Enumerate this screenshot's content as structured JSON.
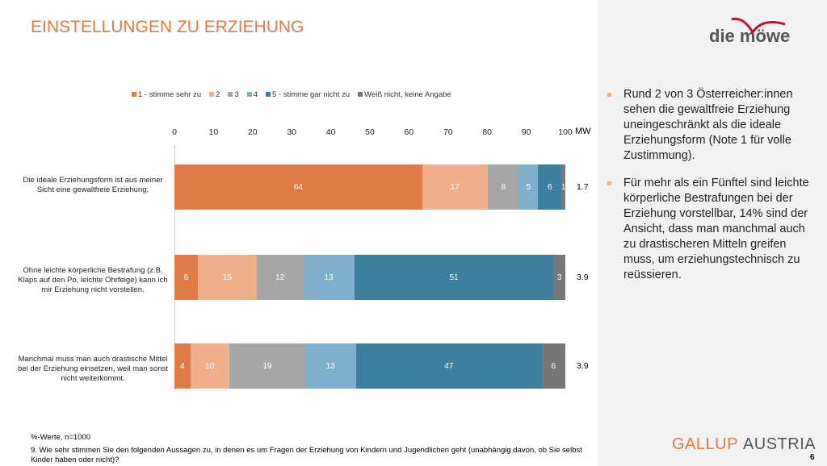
{
  "title": "EINSTELLUNGEN ZU ERZIEHUNG",
  "logo_text": "die möwe",
  "bullets": [
    "Rund 2 von 3 Österreicher:innen sehen die gewaltfreie Erziehung uneingeschränkt als die ideale Erziehungsform (Note 1 für volle Zustimmung).",
    "Für mehr als ein Fünftel sind leichte körperliche Bestrafungen bei der Erziehung vorstellbar, 14% sind der Ansicht, dass man manchmal auch zu drastischeren Mitteln greifen muss, um erziehungstechnisch zu reüssieren."
  ],
  "note": "%-Werte, n=1000",
  "question": "9. Wie sehr stimmen Sie den folgenden Aussagen zu, in denen es um Fragen der Erziehung von Kindern und Jugendlichen geht (unabhängig davon, ob Sie selbst Kinder haben oder nicht)?",
  "footer": {
    "brand": "GALLUP",
    "brand2": "AUSTRIA",
    "page": "6"
  },
  "chart_data": {
    "type": "bar",
    "stacked": true,
    "orientation": "horizontal",
    "xlim": [
      0,
      100
    ],
    "ticks": [
      "0",
      "10",
      "20",
      "30",
      "40",
      "50",
      "60",
      "70",
      "80",
      "90",
      "100"
    ],
    "mw_label": "MW",
    "legend_position": "top",
    "series": [
      {
        "name": "1 - stimme sehr zu",
        "color": "#e07b45"
      },
      {
        "name": "2",
        "color": "#eeaf8a"
      },
      {
        "name": "3",
        "color": "#a6a6a6"
      },
      {
        "name": "4",
        "color": "#7fb0cc"
      },
      {
        "name": "5 -  stimme gar nicht zu",
        "color": "#3e7fa0"
      },
      {
        "name": "Weiß nicht, keine Angabe",
        "color": "#777777"
      }
    ],
    "categories": [
      {
        "label": "Die ideale Erziehungsform ist aus meiner Sicht eine gewaltfreie Erziehung.",
        "values": [
          64,
          17,
          8,
          5,
          6,
          1
        ],
        "mw": "1.7"
      },
      {
        "label": "Ohne leichte körperliche Bestrafung (z.B. Klaps auf den Po, leichte Ohrfeige) kann ich mir Erziehung nicht vorstellen.",
        "values": [
          6,
          15,
          12,
          13,
          51,
          3
        ],
        "mw": "3.9"
      },
      {
        "label": "Manchmal muss man auch drastische Mittel bei der Erziehung einsetzen, weil man sonst nicht weiterkommt.",
        "values": [
          4,
          10,
          19,
          13,
          47,
          6
        ],
        "mw": "3.9"
      }
    ]
  }
}
